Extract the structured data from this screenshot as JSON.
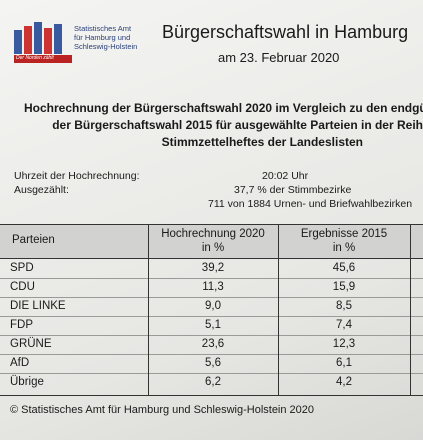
{
  "header": {
    "logo_lines": [
      "Statistisches Amt",
      "für Hamburg und",
      "Schleswig-Holstein"
    ],
    "logo_slogan": "Der Norden zählt",
    "title": "Bürgerschaftswahl in Hamburg",
    "date": "am 23. Februar 2020"
  },
  "heading": [
    "Hochrechnung der Bürgerschaftswahl 2020 im Vergleich zu den endgü",
    "der Bürgerschaftswahl 2015 für ausgewählte Parteien in der Reih",
    "Stimmzettelheftes der Landeslisten"
  ],
  "info": [
    {
      "label": "Uhrzeit der Hochrechnung:",
      "value": "20:02 Uhr"
    },
    {
      "label": "Ausgezählt:",
      "value": "37,7 % der Stimmbezirke"
    },
    {
      "label": null,
      "value": "711 von 1884 Urnen- und Briefwahlbezirken"
    }
  ],
  "table": {
    "headers": [
      [
        "Parteien"
      ],
      [
        "Hochrechnung 2020",
        "in %"
      ],
      [
        "Ergebnisse 2015",
        "in %"
      ]
    ],
    "rows": [
      [
        "SPD",
        "39,2",
        "45,6"
      ],
      [
        "CDU",
        "11,3",
        "15,9"
      ],
      [
        "DIE LINKE",
        "9,0",
        "8,5"
      ],
      [
        "FDP",
        "5,1",
        "7,4"
      ],
      [
        "GRÜNE",
        "23,6",
        "12,3"
      ],
      [
        "AfD",
        "5,6",
        "6,1"
      ],
      [
        "Übrige",
        "6,2",
        "4,2"
      ]
    ]
  },
  "footer": "© Statistisches Amt für Hamburg und Schleswig-Holstein 2020"
}
